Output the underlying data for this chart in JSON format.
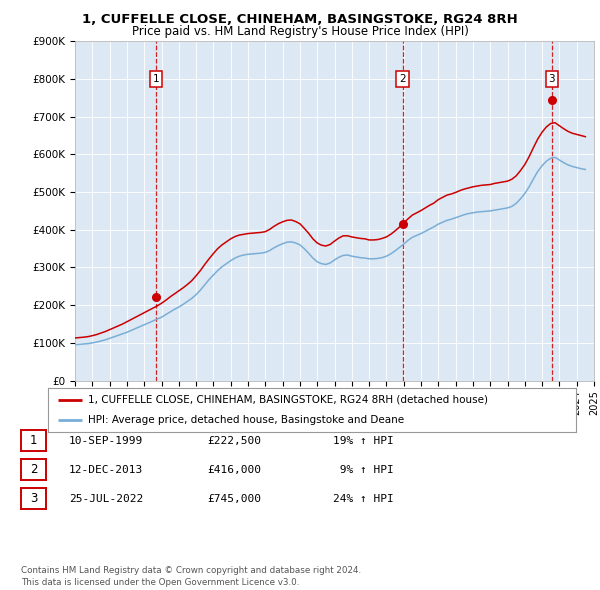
{
  "title_line1": "1, CUFFELLE CLOSE, CHINEHAM, BASINGSTOKE, RG24 8RH",
  "title_line2": "Price paid vs. HM Land Registry's House Price Index (HPI)",
  "plot_bg_color": "#dce8f4",
  "ylim": [
    0,
    900000
  ],
  "yticks": [
    0,
    100000,
    200000,
    300000,
    400000,
    500000,
    600000,
    700000,
    800000,
    900000
  ],
  "ytick_labels": [
    "£0",
    "£100K",
    "£200K",
    "£300K",
    "£400K",
    "£500K",
    "£600K",
    "£700K",
    "£800K",
    "£900K"
  ],
  "sale_dates_num": [
    1999.69,
    2013.94,
    2022.56
  ],
  "sale_prices": [
    222500,
    416000,
    745000
  ],
  "sale_labels": [
    "1",
    "2",
    "3"
  ],
  "hpi_x": [
    1995.0,
    1995.25,
    1995.5,
    1995.75,
    1996.0,
    1996.25,
    1996.5,
    1996.75,
    1997.0,
    1997.25,
    1997.5,
    1997.75,
    1998.0,
    1998.25,
    1998.5,
    1998.75,
    1999.0,
    1999.25,
    1999.5,
    1999.75,
    2000.0,
    2000.25,
    2000.5,
    2000.75,
    2001.0,
    2001.25,
    2001.5,
    2001.75,
    2002.0,
    2002.25,
    2002.5,
    2002.75,
    2003.0,
    2003.25,
    2003.5,
    2003.75,
    2004.0,
    2004.25,
    2004.5,
    2004.75,
    2005.0,
    2005.25,
    2005.5,
    2005.75,
    2006.0,
    2006.25,
    2006.5,
    2006.75,
    2007.0,
    2007.25,
    2007.5,
    2007.75,
    2008.0,
    2008.25,
    2008.5,
    2008.75,
    2009.0,
    2009.25,
    2009.5,
    2009.75,
    2010.0,
    2010.25,
    2010.5,
    2010.75,
    2011.0,
    2011.25,
    2011.5,
    2011.75,
    2012.0,
    2012.25,
    2012.5,
    2012.75,
    2013.0,
    2013.25,
    2013.5,
    2013.75,
    2014.0,
    2014.25,
    2014.5,
    2014.75,
    2015.0,
    2015.25,
    2015.5,
    2015.75,
    2016.0,
    2016.25,
    2016.5,
    2016.75,
    2017.0,
    2017.25,
    2017.5,
    2017.75,
    2018.0,
    2018.25,
    2018.5,
    2018.75,
    2019.0,
    2019.25,
    2019.5,
    2019.75,
    2020.0,
    2020.25,
    2020.5,
    2020.75,
    2021.0,
    2021.25,
    2021.5,
    2021.75,
    2022.0,
    2022.25,
    2022.5,
    2022.75,
    2023.0,
    2023.25,
    2023.5,
    2023.75,
    2024.0,
    2024.25,
    2024.5
  ],
  "hpi_y": [
    95000,
    96000,
    97000,
    98000,
    100000,
    102000,
    105000,
    108000,
    112000,
    116000,
    120000,
    124000,
    128000,
    133000,
    138000,
    143000,
    148000,
    153000,
    158000,
    163000,
    168000,
    175000,
    182000,
    189000,
    195000,
    202000,
    210000,
    218000,
    228000,
    240000,
    254000,
    268000,
    280000,
    292000,
    302000,
    310000,
    318000,
    325000,
    330000,
    333000,
    335000,
    336000,
    337000,
    338000,
    340000,
    345000,
    352000,
    358000,
    363000,
    367000,
    368000,
    365000,
    360000,
    350000,
    338000,
    325000,
    315000,
    310000,
    308000,
    312000,
    320000,
    327000,
    332000,
    333000,
    330000,
    328000,
    326000,
    325000,
    323000,
    323000,
    324000,
    326000,
    330000,
    336000,
    344000,
    353000,
    362000,
    372000,
    380000,
    385000,
    390000,
    396000,
    402000,
    408000,
    415000,
    420000,
    425000,
    428000,
    432000,
    436000,
    440000,
    443000,
    445000,
    447000,
    448000,
    449000,
    450000,
    452000,
    454000,
    456000,
    458000,
    462000,
    470000,
    482000,
    496000,
    514000,
    535000,
    555000,
    570000,
    582000,
    590000,
    592000,
    585000,
    578000,
    572000,
    568000,
    565000,
    562000,
    560000
  ],
  "prop_x": [
    1995.0,
    1995.25,
    1995.5,
    1995.75,
    1996.0,
    1996.25,
    1996.5,
    1996.75,
    1997.0,
    1997.25,
    1997.5,
    1997.75,
    1998.0,
    1998.25,
    1998.5,
    1998.75,
    1999.0,
    1999.25,
    1999.5,
    1999.75,
    2000.0,
    2000.25,
    2000.5,
    2000.75,
    2001.0,
    2001.25,
    2001.5,
    2001.75,
    2002.0,
    2002.25,
    2002.5,
    2002.75,
    2003.0,
    2003.25,
    2003.5,
    2003.75,
    2004.0,
    2004.25,
    2004.5,
    2004.75,
    2005.0,
    2005.25,
    2005.5,
    2005.75,
    2006.0,
    2006.25,
    2006.5,
    2006.75,
    2007.0,
    2007.25,
    2007.5,
    2007.75,
    2008.0,
    2008.25,
    2008.5,
    2008.75,
    2009.0,
    2009.25,
    2009.5,
    2009.75,
    2010.0,
    2010.25,
    2010.5,
    2010.75,
    2011.0,
    2011.25,
    2011.5,
    2011.75,
    2012.0,
    2012.25,
    2012.5,
    2012.75,
    2013.0,
    2013.25,
    2013.5,
    2013.75,
    2014.0,
    2014.25,
    2014.5,
    2014.75,
    2015.0,
    2015.25,
    2015.5,
    2015.75,
    2016.0,
    2016.25,
    2016.5,
    2016.75,
    2017.0,
    2017.25,
    2017.5,
    2017.75,
    2018.0,
    2018.25,
    2018.5,
    2018.75,
    2019.0,
    2019.25,
    2019.5,
    2019.75,
    2020.0,
    2020.25,
    2020.5,
    2020.75,
    2021.0,
    2021.25,
    2021.5,
    2021.75,
    2022.0,
    2022.25,
    2022.5,
    2022.75,
    2023.0,
    2023.25,
    2023.5,
    2023.75,
    2024.0,
    2024.25,
    2024.5
  ],
  "prop_y": [
    113000,
    114000,
    115000,
    116500,
    119000,
    122000,
    126000,
    130000,
    135000,
    140000,
    145000,
    150000,
    156000,
    162000,
    168000,
    174000,
    180000,
    186000,
    192000,
    198000,
    205000,
    213000,
    222000,
    230000,
    238000,
    246000,
    255000,
    265000,
    278000,
    292000,
    308000,
    323000,
    337000,
    350000,
    360000,
    368000,
    376000,
    382000,
    386000,
    388000,
    390000,
    391000,
    392000,
    393000,
    395000,
    401000,
    409000,
    416000,
    421000,
    425000,
    426000,
    422000,
    416000,
    404000,
    391000,
    376000,
    365000,
    359000,
    357000,
    361000,
    370000,
    378000,
    384000,
    384000,
    381000,
    379000,
    377000,
    376000,
    373000,
    373000,
    374000,
    377000,
    381000,
    388000,
    397000,
    407000,
    418000,
    429000,
    439000,
    445000,
    451000,
    458000,
    465000,
    471000,
    480000,
    486000,
    492000,
    495000,
    499000,
    504000,
    508000,
    511000,
    514000,
    516000,
    518000,
    519000,
    520000,
    523000,
    525000,
    527000,
    529000,
    534000,
    543000,
    557000,
    573000,
    594000,
    618000,
    641000,
    659000,
    673000,
    682000,
    684000,
    676000,
    668000,
    661000,
    656000,
    653000,
    650000,
    647000
  ],
  "legend_label_red": "1, CUFFELLE CLOSE, CHINEHAM, BASINGSTOKE, RG24 8RH (detached house)",
  "legend_label_blue": "HPI: Average price, detached house, Basingstoke and Deane",
  "table_data": [
    [
      "1",
      "10-SEP-1999",
      "£222,500",
      "19% ↑ HPI"
    ],
    [
      "2",
      "12-DEC-2013",
      "£416,000",
      " 9% ↑ HPI"
    ],
    [
      "3",
      "25-JUL-2022",
      "£745,000",
      "24% ↑ HPI"
    ]
  ],
  "footer_text": "Contains HM Land Registry data © Crown copyright and database right 2024.\nThis data is licensed under the Open Government Licence v3.0.",
  "red_color": "#cc0000",
  "blue_color": "#7aaed6",
  "vline_color": "#cc0000",
  "grid_color": "#ffffff",
  "title_fontsize": 9.5,
  "subtitle_fontsize": 8.5
}
